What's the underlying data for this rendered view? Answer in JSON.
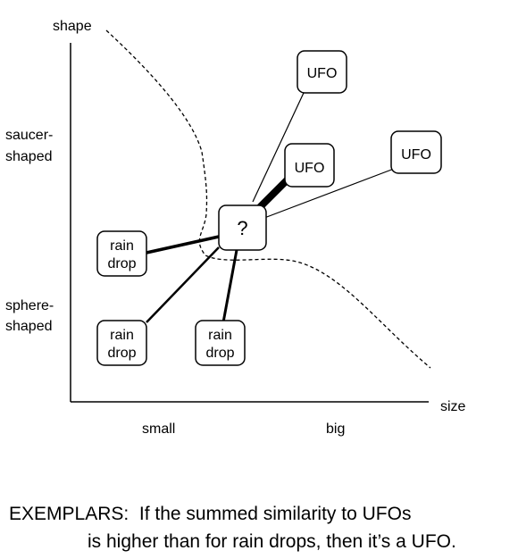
{
  "axes": {
    "y_title": "shape",
    "x_title": "size",
    "y_high_line1": "saucer-",
    "y_high_line2": "shaped",
    "y_low_line1": "sphere-",
    "y_low_line2": "shaped",
    "x_low": "small",
    "x_high": "big"
  },
  "nodes": {
    "query": "?",
    "ufo_top": "UFO",
    "ufo_right": "UFO",
    "ufo_mid": "UFO",
    "raindrop_line1": "rain",
    "raindrop_line2": "drop"
  },
  "caption": {
    "line1": "EXEMPLARS:  If the summed similarity to UFOs",
    "line2": "is higher than for rain drops, then it’s a UFO."
  }
}
